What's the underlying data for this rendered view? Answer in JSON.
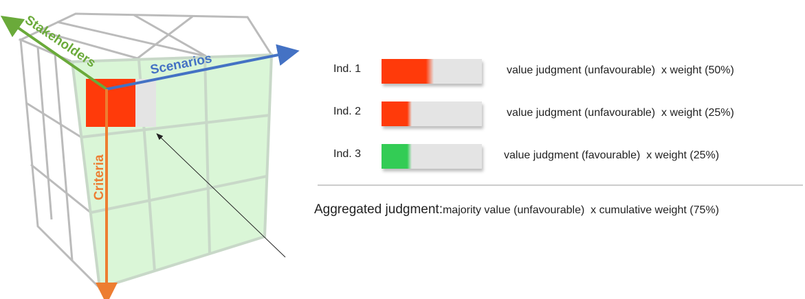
{
  "cube": {
    "stakeholders": "Stakeholders",
    "scenarios": "Scenarios",
    "criteria": "Criteria"
  },
  "indicators": [
    {
      "label": "Ind. 1",
      "judgment": "value judgment (unfavourable)  x weight (50%)",
      "color": "#ff3a0a"
    },
    {
      "label": "Ind. 2",
      "judgment": "value judgment (unfavourable)  x weight (25%)",
      "color": "#ff3a0a"
    },
    {
      "label": "Ind. 3",
      "judgment": "value judgment (favourable)  x weight (25%)",
      "color": "#33cc55"
    }
  ],
  "aggregate": {
    "label": "Aggregated judgment:",
    "text": "majority value (unfavourable)  x cumulative weight (75%)"
  }
}
